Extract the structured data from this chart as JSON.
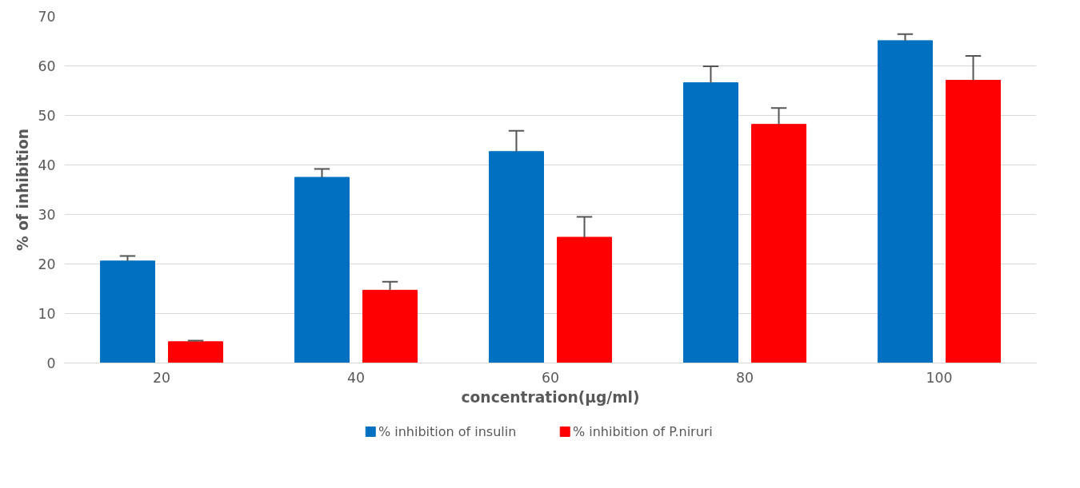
{
  "chart_data": {
    "type": "bar",
    "xlabel": "concentration(µg/ml)",
    "ylabel": "% of inhibition",
    "categories": [
      "20",
      "40",
      "60",
      "80",
      "100"
    ],
    "series": [
      {
        "name": "% inhibition of insulin",
        "color": "#0070c0",
        "values": [
          20.6,
          37.5,
          42.7,
          56.6,
          65.1
        ],
        "errors": [
          [
            20.6,
            21.6
          ],
          [
            37.5,
            39.2
          ],
          [
            42.7,
            46.9
          ],
          [
            56.6,
            59.9
          ],
          [
            65.1,
            66.4
          ]
        ]
      },
      {
        "name": "% inhibition of P.niruri",
        "color": "#ff0000",
        "values": [
          4.3,
          14.7,
          25.4,
          48.2,
          57.1
        ],
        "errors": [
          [
            4.3,
            4.5
          ],
          [
            14.7,
            16.4
          ],
          [
            25.4,
            29.5
          ],
          [
            48.2,
            51.5
          ],
          [
            57.1,
            62.0
          ]
        ]
      }
    ],
    "ylim": [
      0,
      70
    ],
    "yticks": [
      0,
      10,
      20,
      30,
      40,
      50,
      60,
      70
    ],
    "grid": "y",
    "legend": "bottom"
  }
}
